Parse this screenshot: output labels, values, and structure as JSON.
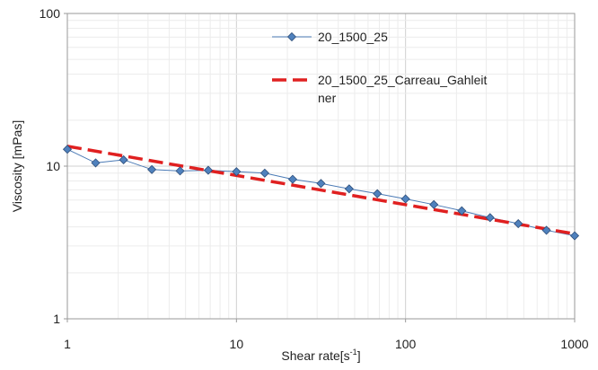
{
  "chart_data": {
    "type": "line",
    "xlabel": "Shear rate[s",
    "xlabel_sup": "-1",
    "xlabel_end": "]",
    "ylabel": "Viscosity [mPas]",
    "x_scale": "log",
    "y_scale": "log",
    "xlim": [
      1,
      1000
    ],
    "ylim": [
      1,
      100
    ],
    "x_ticks": [
      {
        "value": 1,
        "label": "1"
      },
      {
        "value": 10,
        "label": "10"
      },
      {
        "value": 100,
        "label": "100"
      },
      {
        "value": 1000,
        "label": "1000"
      }
    ],
    "y_ticks": [
      {
        "value": 1,
        "label": "1"
      },
      {
        "value": 10,
        "label": "10"
      },
      {
        "value": 100,
        "label": "100"
      }
    ],
    "grid": true,
    "legend_position": "top-center",
    "series": [
      {
        "name": "20_1500_25",
        "style": "line-markers",
        "color": "#4a7ab5",
        "marker_fill": "#4f81bd",
        "marker_stroke": "#2f4f7a",
        "marker": "diamond",
        "x": [
          1,
          1.47,
          2.15,
          3.16,
          4.64,
          6.81,
          10,
          14.7,
          21.5,
          31.6,
          46.4,
          68.1,
          100,
          147,
          215,
          316,
          464,
          681,
          1000
        ],
        "y": [
          12.9,
          10.5,
          11.0,
          9.5,
          9.3,
          9.4,
          9.2,
          9.0,
          8.2,
          7.7,
          7.1,
          6.6,
          6.1,
          5.6,
          5.1,
          4.6,
          4.2,
          3.8,
          3.5
        ]
      },
      {
        "name": "20_1500_25_Carreau_Gahleit ner",
        "name_lines": [
          "20_1500_25_Carreau_Gahleit",
          "ner"
        ],
        "style": "dashed",
        "color": "#e02020",
        "x": [
          1,
          1000
        ],
        "y": [
          13.5,
          3.6
        ]
      }
    ]
  }
}
